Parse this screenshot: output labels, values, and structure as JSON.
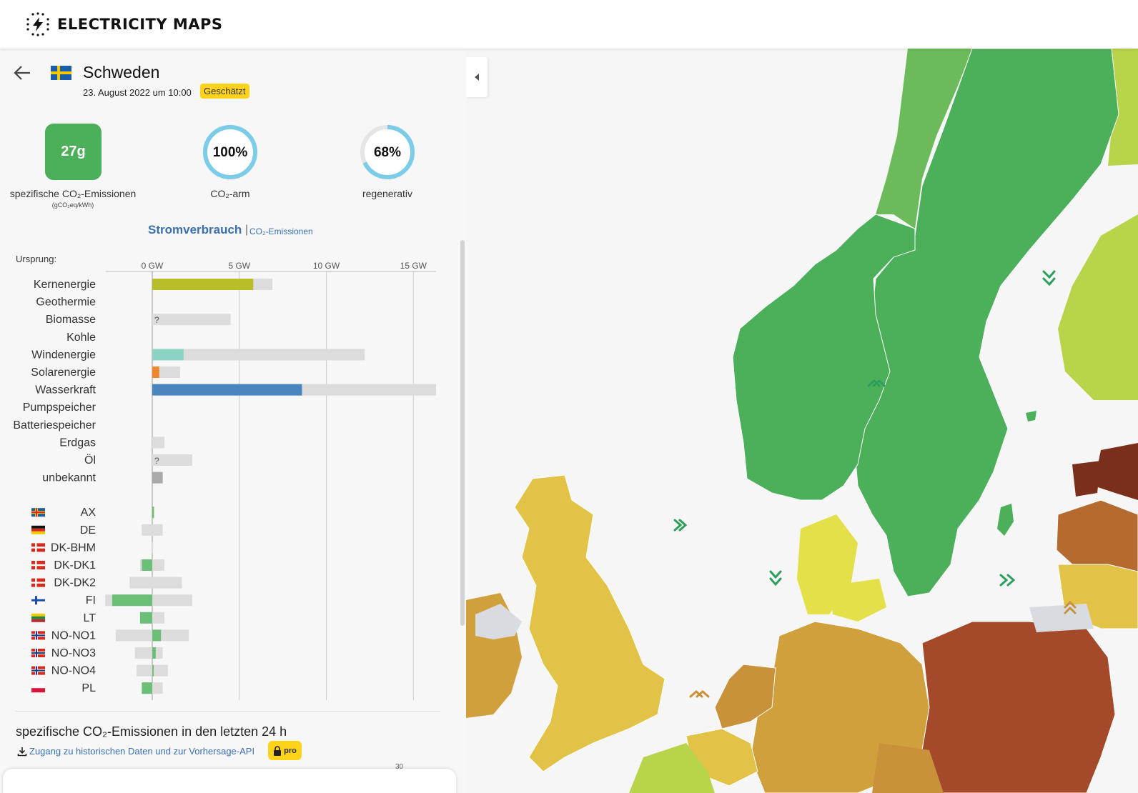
{
  "app": {
    "brand": "ELECTRICITY MAPS"
  },
  "zone": {
    "name": "Schweden",
    "datetime": "23. August 2022 um 10:00",
    "badge": "Geschätzt"
  },
  "metrics": {
    "carbon_intensity": {
      "value": "27g",
      "label": "spezifische CO₂-Emissionen",
      "unit": "(gCO₂eq/kWh)",
      "color": "#4caf5a"
    },
    "low_carbon": {
      "value": "100%",
      "fraction": 1.0,
      "label": "CO₂-arm"
    },
    "renewable": {
      "value": "68%",
      "fraction": 0.68,
      "label": "regenerativ"
    }
  },
  "chart_header": {
    "title": "Stromverbrauch",
    "separator": "|",
    "alt_link": "CO₂-Emissionen",
    "origin_label": "Ursprung:"
  },
  "chart_data": {
    "type": "bar",
    "unit": "GW",
    "xlim": [
      0,
      16.3
    ],
    "ticks": [
      0,
      5,
      10,
      15
    ],
    "tick_labels": [
      "0 GW",
      "5 GW",
      "10 GW",
      "15 GW"
    ],
    "sources": [
      {
        "name": "Kernenergie",
        "value": 5.8,
        "capacity": 6.9,
        "color": "#b8bd2a"
      },
      {
        "name": "Geothermie",
        "value": 0,
        "capacity": 0,
        "color": "#c8c8c8"
      },
      {
        "name": "Biomasse",
        "value": 0,
        "capacity": 4.5,
        "color": "#c8c8c8",
        "unknown": "?"
      },
      {
        "name": "Kohle",
        "value": 0,
        "capacity": 0,
        "color": "#c8c8c8"
      },
      {
        "name": "Windenergie",
        "value": 1.8,
        "capacity": 12.2,
        "color": "#8cd3c4"
      },
      {
        "name": "Solarenergie",
        "value": 0.4,
        "capacity": 1.6,
        "color": "#f0882b"
      },
      {
        "name": "Wasserkraft",
        "value": 8.6,
        "capacity": 16.3,
        "color": "#4a85bd"
      },
      {
        "name": "Pumpspeicher",
        "value": 0,
        "capacity": 0,
        "color": "#c8c8c8"
      },
      {
        "name": "Batteriespeicher",
        "value": 0,
        "capacity": 0,
        "color": "#c8c8c8"
      },
      {
        "name": "Erdgas",
        "value": 0,
        "capacity": 0.7,
        "color": "#c8c8c8"
      },
      {
        "name": "Öl",
        "value": 0,
        "capacity": 2.3,
        "color": "#c8c8c8",
        "unknown": "?"
      },
      {
        "name": "unbekannt",
        "value": 0.6,
        "capacity": 0.6,
        "color": "#aaaaaa"
      }
    ],
    "exchanges": [
      {
        "name": "AX",
        "value": 0.1,
        "min": 0,
        "max": 0.1,
        "flag": "ax"
      },
      {
        "name": "DE",
        "value": 0,
        "min": -0.6,
        "max": 0.6,
        "flag": "de"
      },
      {
        "name": "DK-BHM",
        "value": 0,
        "min": -0.05,
        "max": 0.05,
        "flag": "dk"
      },
      {
        "name": "DK-DK1",
        "value": -0.6,
        "min": -0.7,
        "max": 0.7,
        "flag": "dk"
      },
      {
        "name": "DK-DK2",
        "value": 0,
        "min": -1.3,
        "max": 1.7,
        "flag": "dk"
      },
      {
        "name": "FI",
        "value": -2.3,
        "min": -2.7,
        "max": 2.3,
        "flag": "fi"
      },
      {
        "name": "LT",
        "value": -0.7,
        "min": -0.7,
        "max": 0.7,
        "flag": "lt"
      },
      {
        "name": "NO-NO1",
        "value": 0.5,
        "min": -2.1,
        "max": 2.1,
        "flag": "no"
      },
      {
        "name": "NO-NO3",
        "value": 0.2,
        "min": -1.0,
        "max": 0.6,
        "flag": "no"
      },
      {
        "name": "NO-NO4",
        "value": 0.05,
        "min": -0.9,
        "max": 0.9,
        "flag": "no"
      },
      {
        "name": "PL",
        "value": -0.6,
        "min": -0.6,
        "max": 0.6,
        "flag": "pl"
      }
    ]
  },
  "history": {
    "title": "spezifische CO₂-Emissionen in den letzten 24 h",
    "link": "Zugang zu historischen Daten und zur Vorhersage-API",
    "pro": "pro",
    "tick": "30"
  },
  "map_colors": {
    "low": "#4caf5a",
    "light_green": "#6cbb5a",
    "yellow_green": "#b8d44a",
    "yellow": "#e2c247",
    "amber": "#d0a03c",
    "brown": "#a44a2a",
    "grey": "#d8dce0"
  }
}
